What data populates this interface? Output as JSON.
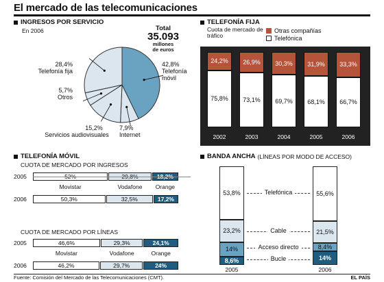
{
  "title": "El mercado de las telecomunicaciones",
  "source": "Fuente: Comisión del Mercado de las Telecomunicaciones (CMT).",
  "credit": "EL PAÍS",
  "colors": {
    "brown": "#b5533b",
    "light_blue": "#dce6ef",
    "mid_blue": "#6aa2c2",
    "dark_blue": "#1f5d80",
    "white": "#ffffff"
  },
  "ingresos": {
    "section_title": "INGRESOS POR SERVICIO",
    "year_note": "En 2006",
    "total_label": "Total",
    "total_value": "35.093",
    "total_unit_1": "millones",
    "total_unit_2": "de euros"
  },
  "fija": {
    "section_title": "TELEFONÍA FIJA",
    "subtitle_1": "Cuota de mercado de",
    "subtitle_2": "tráfico",
    "legend": [
      "Otras compañías",
      "Telefónica"
    ]
  },
  "movil": {
    "section_title": "TELEFONÍA MÓVIL",
    "ingresos_title": "CUOTA DE MERCADO POR INGRESOS",
    "lineas_title": "CUOTA DE MERCADO POR LÍNEAS",
    "operators": [
      "Movistar",
      "Vodafone",
      "Orange"
    ]
  },
  "banda": {
    "section_title": "BANDA ANCHA",
    "section_subtitle": "(LÍNEAS POR MODO DE ACCESO)",
    "labels": [
      "Telefónica",
      "Cable",
      "Acceso directo",
      "Bucle"
    ]
  },
  "chart_data": [
    {
      "type": "pie",
      "title": "INGRESOS POR SERVICIO",
      "categories": [
        "Telefonía móvil",
        "Internet",
        "Servicios audiovisuales",
        "Otros",
        "Telefonía fija"
      ],
      "values": [
        42.8,
        7.9,
        15.2,
        5.7,
        28.4
      ],
      "labels": [
        "42,8%",
        "7,9%",
        "15,2%",
        "5,7%",
        "28,4%"
      ]
    },
    {
      "type": "bar",
      "title": "TELEFONÍA FIJA",
      "categories": [
        "2002",
        "2003",
        "2004",
        "2005",
        "2006"
      ],
      "series": [
        {
          "name": "Telefónica",
          "values": [
            75.8,
            73.1,
            69.7,
            68.1,
            66.7
          ],
          "labels": [
            "75,8%",
            "73,1%",
            "69,7%",
            "68,1%",
            "66,7%"
          ]
        },
        {
          "name": "Otras compañías",
          "values": [
            24.2,
            26.9,
            30.3,
            31.9,
            33.3
          ],
          "labels": [
            "24,2%",
            "26,9%",
            "30,3%",
            "31,9%",
            "33,3%"
          ]
        }
      ],
      "ylim": [
        0,
        100
      ]
    },
    {
      "type": "bar",
      "title": "CUOTA DE MERCADO POR INGRESOS",
      "categories": [
        "2005",
        "2006"
      ],
      "series": [
        {
          "name": "Movistar",
          "values": [
            52,
            50.3
          ],
          "labels": [
            "52%",
            "50,3%"
          ]
        },
        {
          "name": "Vodafone",
          "values": [
            29.8,
            32.5
          ],
          "labels": [
            "29,8%",
            "32,5%"
          ]
        },
        {
          "name": "Orange",
          "values": [
            18.2,
            17.2
          ],
          "labels": [
            "18,2%",
            "17,2%"
          ]
        }
      ]
    },
    {
      "type": "bar",
      "title": "CUOTA DE MERCADO POR LÍNEAS",
      "categories": [
        "2005",
        "2006"
      ],
      "series": [
        {
          "name": "Movistar",
          "values": [
            46.6,
            46.2
          ],
          "labels": [
            "46,6%",
            "46,2%"
          ]
        },
        {
          "name": "Vodafone",
          "values": [
            29.3,
            29.7
          ],
          "labels": [
            "29,3%",
            "29,7%"
          ]
        },
        {
          "name": "Orange",
          "values": [
            24.1,
            24
          ],
          "labels": [
            "24,1%",
            "24%"
          ]
        }
      ]
    },
    {
      "type": "bar",
      "title": "BANDA ANCHA",
      "categories": [
        "2005",
        "2006"
      ],
      "series": [
        {
          "name": "Bucle",
          "values": [
            8.6,
            14
          ],
          "labels": [
            "8,6%",
            "14%"
          ]
        },
        {
          "name": "Acceso directo",
          "values": [
            14,
            8.4
          ],
          "labels": [
            "14%",
            "8,4%"
          ]
        },
        {
          "name": "Cable",
          "values": [
            23.2,
            21.5
          ],
          "labels": [
            "23,2%",
            "21,5%"
          ]
        },
        {
          "name": "Telefónica",
          "values": [
            53.8,
            55.6
          ],
          "labels": [
            "53,8%",
            "55,6%"
          ]
        }
      ],
      "ylim": [
        0,
        100
      ]
    }
  ]
}
